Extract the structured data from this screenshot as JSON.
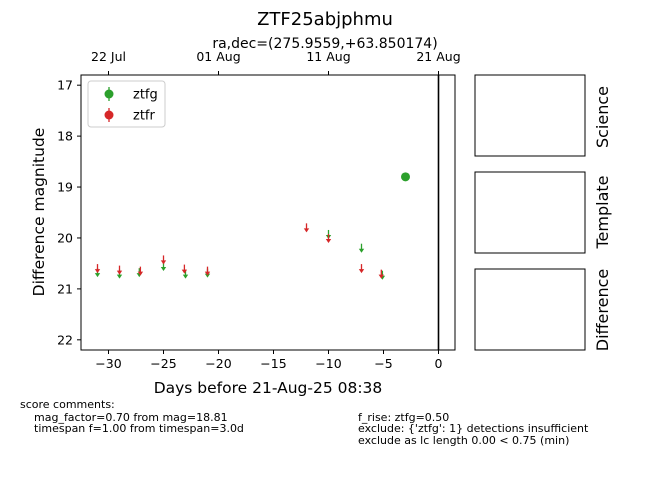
{
  "chart_data": {
    "type": "scatter",
    "title": "ZTF25abjphmu",
    "subtitle": "ra,dec=(275.9559,+63.850174)",
    "xlabel": "Days before 21-Aug-25 08:38",
    "ylabel": "Difference magnitude",
    "xlim": [
      -32.5,
      1.5
    ],
    "ylim": [
      22.2,
      16.8
    ],
    "y_inverted": true,
    "x_ticks": [
      "−30",
      "−25",
      "−20",
      "−15",
      "−10",
      "−5",
      "0"
    ],
    "x_tick_values": [
      -30,
      -25,
      -20,
      -15,
      -10,
      -5,
      0
    ],
    "y_ticks": [
      "17",
      "18",
      "19",
      "20",
      "21",
      "22"
    ],
    "y_tick_values": [
      17,
      18,
      19,
      20,
      21,
      22
    ],
    "top_axis_ticks": [
      {
        "label": "22 Jul",
        "x": -30
      },
      {
        "label": "01 Aug",
        "x": -20
      },
      {
        "label": "11 Aug",
        "x": -10
      },
      {
        "label": "21 Aug",
        "x": 0
      }
    ],
    "vline_x": 0,
    "legend_position": "top-left",
    "series": [
      {
        "name": "ztfg",
        "color": "#2ca02c",
        "detections": [
          {
            "x": -3.0,
            "y": 18.8,
            "yerr": 0.05
          }
        ],
        "upper_limits": [
          {
            "x": -31.0,
            "y": 20.75
          },
          {
            "x": -29.0,
            "y": 20.78
          },
          {
            "x": -27.2,
            "y": 20.75
          },
          {
            "x": -25.0,
            "y": 20.63
          },
          {
            "x": -23.0,
            "y": 20.78
          },
          {
            "x": -21.0,
            "y": 20.76
          },
          {
            "x": -10.0,
            "y": 20.0
          },
          {
            "x": -7.0,
            "y": 20.27
          },
          {
            "x": -5.1,
            "y": 20.8
          }
        ]
      },
      {
        "name": "ztfr",
        "color": "#d62728",
        "detections": [],
        "upper_limits": [
          {
            "x": -31.0,
            "y": 20.67
          },
          {
            "x": -29.0,
            "y": 20.7
          },
          {
            "x": -27.1,
            "y": 20.72
          },
          {
            "x": -25.0,
            "y": 20.5
          },
          {
            "x": -23.1,
            "y": 20.68
          },
          {
            "x": -21.0,
            "y": 20.72
          },
          {
            "x": -12.0,
            "y": 19.87
          },
          {
            "x": -10.0,
            "y": 20.08
          },
          {
            "x": -7.0,
            "y": 20.67
          },
          {
            "x": -5.2,
            "y": 20.78
          }
        ]
      }
    ]
  },
  "panels": {
    "science": "Science",
    "template": "Template",
    "difference": "Difference"
  },
  "comments": {
    "header": "score comments:",
    "left": [
      "mag_factor=0.70 from mag=18.81",
      "timespan f=1.00 from timespan=3.0d"
    ],
    "right": [
      "f_rise: ztfg=0.50",
      "exclude: {'ztfg': 1} detections insufficient",
      "exclude as lc length 0.00 < 0.75 (min)"
    ]
  }
}
